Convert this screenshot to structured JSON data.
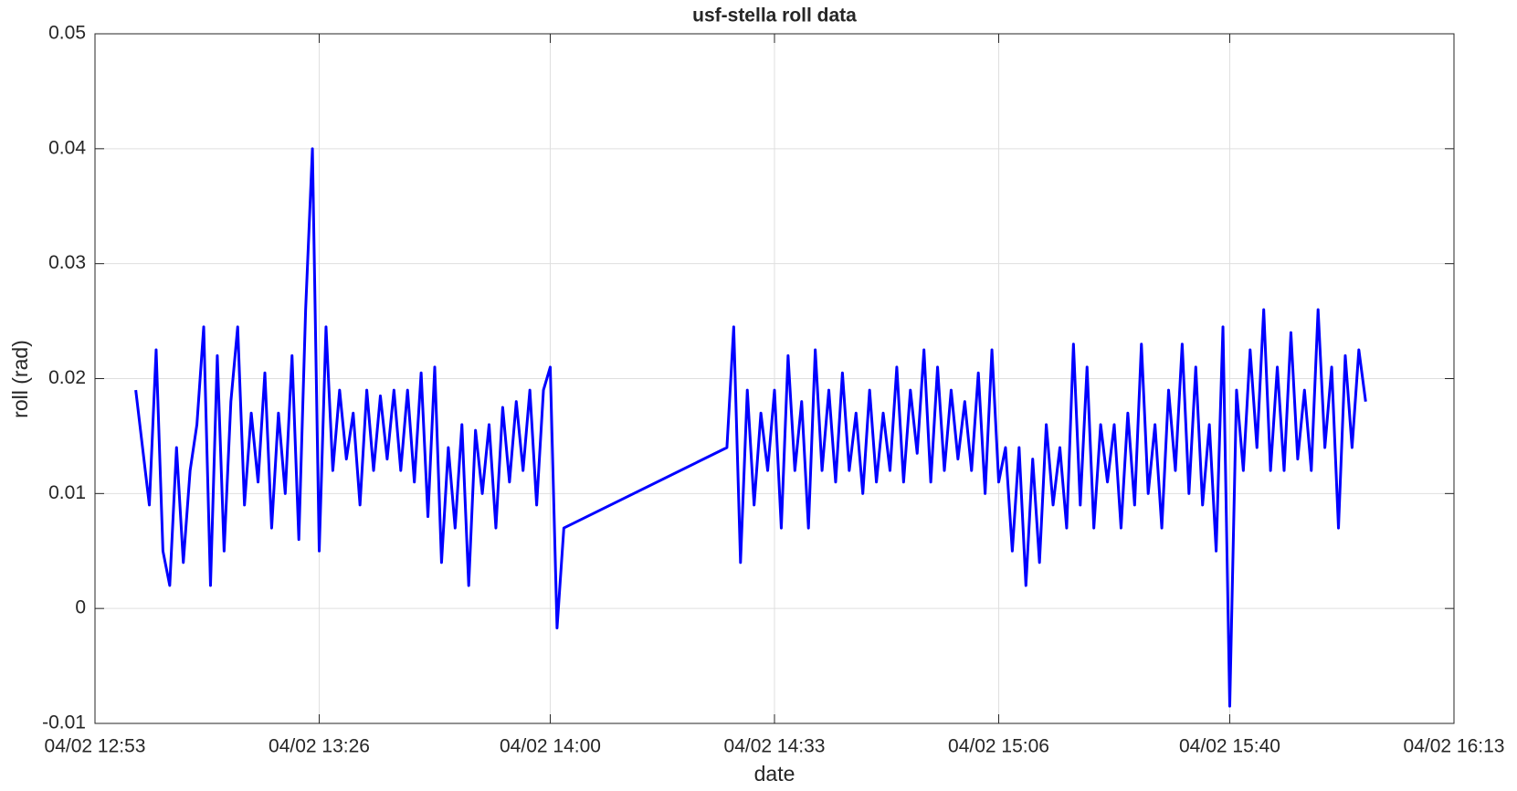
{
  "chart_data": {
    "type": "line",
    "title": "usf-stella roll data",
    "x_label": "date",
    "y_label": "roll (rad)",
    "color": "#0000ff",
    "grid": true,
    "xlim": [
      "04/02 12:53",
      "04/02 16:13"
    ],
    "xticks": [
      "04/02 12:53",
      "04/02 13:26",
      "04/02 14:00",
      "04/02 14:33",
      "04/02 15:06",
      "04/02 15:40",
      "04/02 16:13"
    ],
    "ylim": [
      -0.01,
      0.05
    ],
    "yticks": [
      -0.01,
      0,
      0.01,
      0.02,
      0.03,
      0.04,
      0.05
    ],
    "x": [
      "04/02 12:59",
      "04/02 13:00",
      "04/02 13:01",
      "04/02 13:02",
      "04/02 13:03",
      "04/02 13:04",
      "04/02 13:05",
      "04/02 13:06",
      "04/02 13:07",
      "04/02 13:08",
      "04/02 13:09",
      "04/02 13:10",
      "04/02 13:11",
      "04/02 13:12",
      "04/02 13:13",
      "04/02 13:14",
      "04/02 13:15",
      "04/02 13:16",
      "04/02 13:17",
      "04/02 13:18",
      "04/02 13:19",
      "04/02 13:20",
      "04/02 13:21",
      "04/02 13:22",
      "04/02 13:23",
      "04/02 13:24",
      "04/02 13:25",
      "04/02 13:26",
      "04/02 13:27",
      "04/02 13:28",
      "04/02 13:29",
      "04/02 13:30",
      "04/02 13:31",
      "04/02 13:32",
      "04/02 13:33",
      "04/02 13:34",
      "04/02 13:35",
      "04/02 13:36",
      "04/02 13:37",
      "04/02 13:38",
      "04/02 13:39",
      "04/02 13:40",
      "04/02 13:41",
      "04/02 13:42",
      "04/02 13:43",
      "04/02 13:44",
      "04/02 13:45",
      "04/02 13:46",
      "04/02 13:47",
      "04/02 13:48",
      "04/02 13:49",
      "04/02 13:50",
      "04/02 13:51",
      "04/02 13:52",
      "04/02 13:53",
      "04/02 13:54",
      "04/02 13:55",
      "04/02 13:56",
      "04/02 13:57",
      "04/02 13:58",
      "04/02 13:59",
      "04/02 14:00",
      "04/02 14:01",
      "04/02 14:02",
      "04/02 14:26",
      "04/02 14:27",
      "04/02 14:28",
      "04/02 14:29",
      "04/02 14:30",
      "04/02 14:31",
      "04/02 14:32",
      "04/02 14:33",
      "04/02 14:34",
      "04/02 14:35",
      "04/02 14:36",
      "04/02 14:37",
      "04/02 14:38",
      "04/02 14:39",
      "04/02 14:40",
      "04/02 14:41",
      "04/02 14:42",
      "04/02 14:43",
      "04/02 14:44",
      "04/02 14:45",
      "04/02 14:46",
      "04/02 14:47",
      "04/02 14:48",
      "04/02 14:49",
      "04/02 14:50",
      "04/02 14:51",
      "04/02 14:52",
      "04/02 14:53",
      "04/02 14:54",
      "04/02 14:55",
      "04/02 14:56",
      "04/02 14:57",
      "04/02 14:58",
      "04/02 14:59",
      "04/02 15:00",
      "04/02 15:01",
      "04/02 15:02",
      "04/02 15:03",
      "04/02 15:04",
      "04/02 15:05",
      "04/02 15:06",
      "04/02 15:07",
      "04/02 15:08",
      "04/02 15:09",
      "04/02 15:10",
      "04/02 15:11",
      "04/02 15:12",
      "04/02 15:13",
      "04/02 15:14",
      "04/02 15:15",
      "04/02 15:16",
      "04/02 15:17",
      "04/02 15:18",
      "04/02 15:19",
      "04/02 15:20",
      "04/02 15:21",
      "04/02 15:22",
      "04/02 15:23",
      "04/02 15:24",
      "04/02 15:25",
      "04/02 15:26",
      "04/02 15:27",
      "04/02 15:28",
      "04/02 15:29",
      "04/02 15:30",
      "04/02 15:31",
      "04/02 15:32",
      "04/02 15:33",
      "04/02 15:34",
      "04/02 15:35",
      "04/02 15:36",
      "04/02 15:37",
      "04/02 15:38",
      "04/02 15:39",
      "04/02 15:40",
      "04/02 15:41",
      "04/02 15:42",
      "04/02 15:43",
      "04/02 15:44",
      "04/02 15:45",
      "04/02 15:46",
      "04/02 15:47",
      "04/02 15:48",
      "04/02 15:49",
      "04/02 15:50",
      "04/02 15:51",
      "04/02 15:52",
      "04/02 15:53",
      "04/02 15:54",
      "04/02 15:55",
      "04/02 15:56",
      "04/02 15:57",
      "04/02 15:58",
      "04/02 15:59",
      "04/02 16:00"
    ],
    "values": [
      0.019,
      0.014,
      0.009,
      0.0225,
      0.005,
      0.002,
      0.014,
      0.004,
      0.012,
      0.016,
      0.0245,
      0.002,
      0.022,
      0.005,
      0.018,
      0.0245,
      0.009,
      0.017,
      0.011,
      0.0205,
      0.007,
      0.017,
      0.01,
      0.022,
      0.006,
      0.026,
      0.04,
      0.005,
      0.0245,
      0.012,
      0.019,
      0.013,
      0.017,
      0.009,
      0.019,
      0.012,
      0.0185,
      0.013,
      0.019,
      0.012,
      0.019,
      0.011,
      0.0205,
      0.008,
      0.021,
      0.004,
      0.014,
      0.007,
      0.016,
      0.002,
      0.0155,
      0.01,
      0.016,
      0.007,
      0.0175,
      0.011,
      0.018,
      0.012,
      0.019,
      0.009,
      0.019,
      0.021,
      -0.0017,
      0.007,
      0.014,
      0.0245,
      0.004,
      0.019,
      0.009,
      0.017,
      0.012,
      0.019,
      0.007,
      0.022,
      0.012,
      0.018,
      0.007,
      0.0225,
      0.012,
      0.019,
      0.011,
      0.0205,
      0.012,
      0.017,
      0.01,
      0.019,
      0.011,
      0.017,
      0.012,
      0.021,
      0.011,
      0.019,
      0.0135,
      0.0225,
      0.011,
      0.021,
      0.012,
      0.019,
      0.013,
      0.018,
      0.012,
      0.0205,
      0.01,
      0.0225,
      0.011,
      0.014,
      0.005,
      0.014,
      0.002,
      0.013,
      0.004,
      0.016,
      0.009,
      0.014,
      0.007,
      0.023,
      0.009,
      0.021,
      0.007,
      0.016,
      0.011,
      0.016,
      0.007,
      0.017,
      0.009,
      0.023,
      0.01,
      0.016,
      0.007,
      0.019,
      0.012,
      0.023,
      0.01,
      0.021,
      0.009,
      0.016,
      0.005,
      0.0245,
      -0.0085,
      0.019,
      0.012,
      0.0225,
      0.014,
      0.026,
      0.012,
      0.021,
      0.012,
      0.024,
      0.013,
      0.019,
      0.012,
      0.026,
      0.014,
      0.021,
      0.007,
      0.022,
      0.014,
      0.0225,
      0.018
    ]
  }
}
